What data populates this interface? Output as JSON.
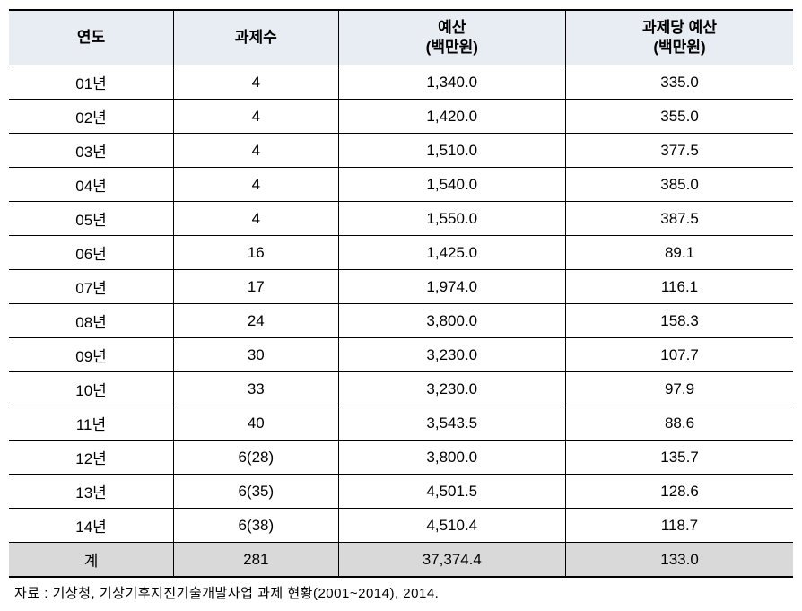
{
  "table": {
    "type": "table",
    "columns": [
      "연도",
      "과제수",
      "예산\n(백만원)",
      "과제당 예산\n(백만원)"
    ],
    "column_widths_pct": [
      21,
      21,
      29,
      29
    ],
    "alignment": [
      "center",
      "center",
      "center",
      "center"
    ],
    "header_bg": "#e8edf3",
    "header_fontsize": 17,
    "body_fontsize": 17,
    "border_color": "#000000",
    "total_row_bg": "#d9d9d9",
    "rows": [
      [
        "01년",
        "4",
        "1,340.0",
        "335.0"
      ],
      [
        "02년",
        "4",
        "1,420.0",
        "355.0"
      ],
      [
        "03년",
        "4",
        "1,510.0",
        "377.5"
      ],
      [
        "04년",
        "4",
        "1,540.0",
        "385.0"
      ],
      [
        "05년",
        "4",
        "1,550.0",
        "387.5"
      ],
      [
        "06년",
        "16",
        "1,425.0",
        "89.1"
      ],
      [
        "07년",
        "17",
        "1,974.0",
        "116.1"
      ],
      [
        "08년",
        "24",
        "3,800.0",
        "158.3"
      ],
      [
        "09년",
        "30",
        "3,230.0",
        "107.7"
      ],
      [
        "10년",
        "33",
        "3,230.0",
        "97.9"
      ],
      [
        "11년",
        "40",
        "3,543.5",
        "88.6"
      ],
      [
        "12년",
        "6(28)",
        "3,800.0",
        "135.7"
      ],
      [
        "13년",
        "6(35)",
        "4,501.5",
        "128.6"
      ],
      [
        "14년",
        "6(38)",
        "4,510.4",
        "118.7"
      ]
    ],
    "total_row": [
      "계",
      "281",
      "37,374.4",
      "133.0"
    ]
  },
  "footnote": "자료 : 기상청, 기상기후지진기술개발사업 과제 현황(2001~2014), 2014."
}
